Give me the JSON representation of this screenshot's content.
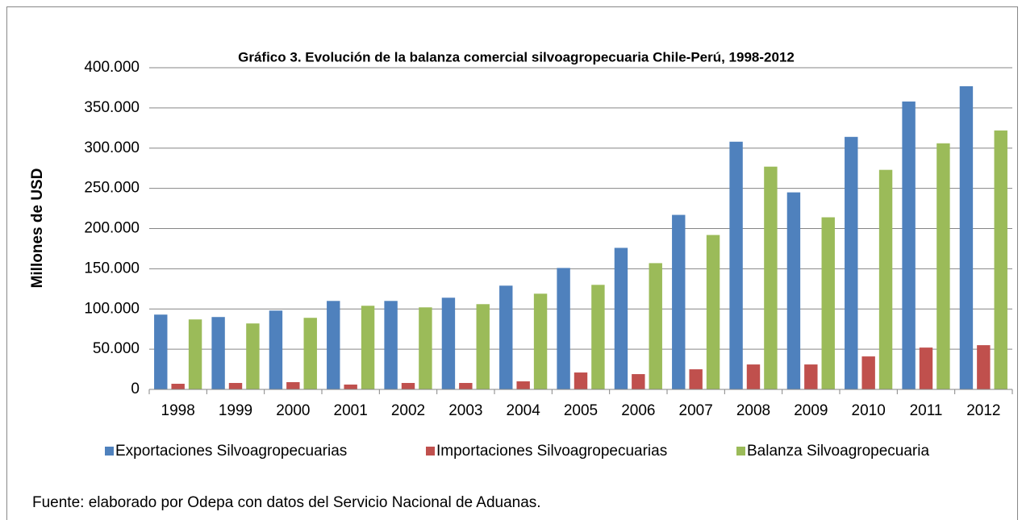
{
  "chart_data": {
    "type": "bar",
    "title": "Gráfico 3. Evolución de la balanza comercial silvoagropecuaria Chile-Perú, 1998-2012",
    "y_label": "Millones de USD",
    "source": "Fuente: elaborado por Odepa con datos del Servicio Nacional de Aduanas.",
    "categories": [
      "1998",
      "1999",
      "2000",
      "2001",
      "2002",
      "2003",
      "2004",
      "2005",
      "2006",
      "2007",
      "2008",
      "2009",
      "2010",
      "2011",
      "2012"
    ],
    "series": [
      {
        "name": "Exportaciones Silvoagropecuarias",
        "color": "#4f81bd",
        "values": [
          93000,
          90000,
          98000,
          110000,
          110000,
          114000,
          129000,
          151000,
          176000,
          217000,
          308000,
          245000,
          314000,
          358000,
          377000
        ]
      },
      {
        "name": "Importaciones Silvoagropecuarias",
        "color": "#c0504d",
        "values": [
          7000,
          8000,
          9000,
          6000,
          8000,
          8000,
          10000,
          21000,
          19000,
          25000,
          31000,
          31000,
          41000,
          52000,
          55000
        ]
      },
      {
        "name": "Balanza Silvoagropecuaria",
        "color": "#9bbb59",
        "values": [
          87000,
          82000,
          89000,
          104000,
          102000,
          106000,
          119000,
          130000,
          157000,
          192000,
          277000,
          214000,
          273000,
          306000,
          322000
        ]
      }
    ],
    "ylim": [
      0,
      400000
    ],
    "yticks": [
      0,
      {
        "value": 50000,
        "label": "50.000"
      },
      {
        "value": 100000,
        "label": "100.000"
      },
      {
        "value": 150000,
        "label": "150.000"
      },
      {
        "value": 200000,
        "label": "200.000"
      },
      {
        "value": 250000,
        "label": "250.000"
      },
      {
        "value": 300000,
        "label": "300.000"
      },
      {
        "value": 350000,
        "label": "350.000"
      },
      {
        "value": 400000,
        "label": "400.000"
      }
    ],
    "grid": true,
    "legend": "bottom"
  }
}
